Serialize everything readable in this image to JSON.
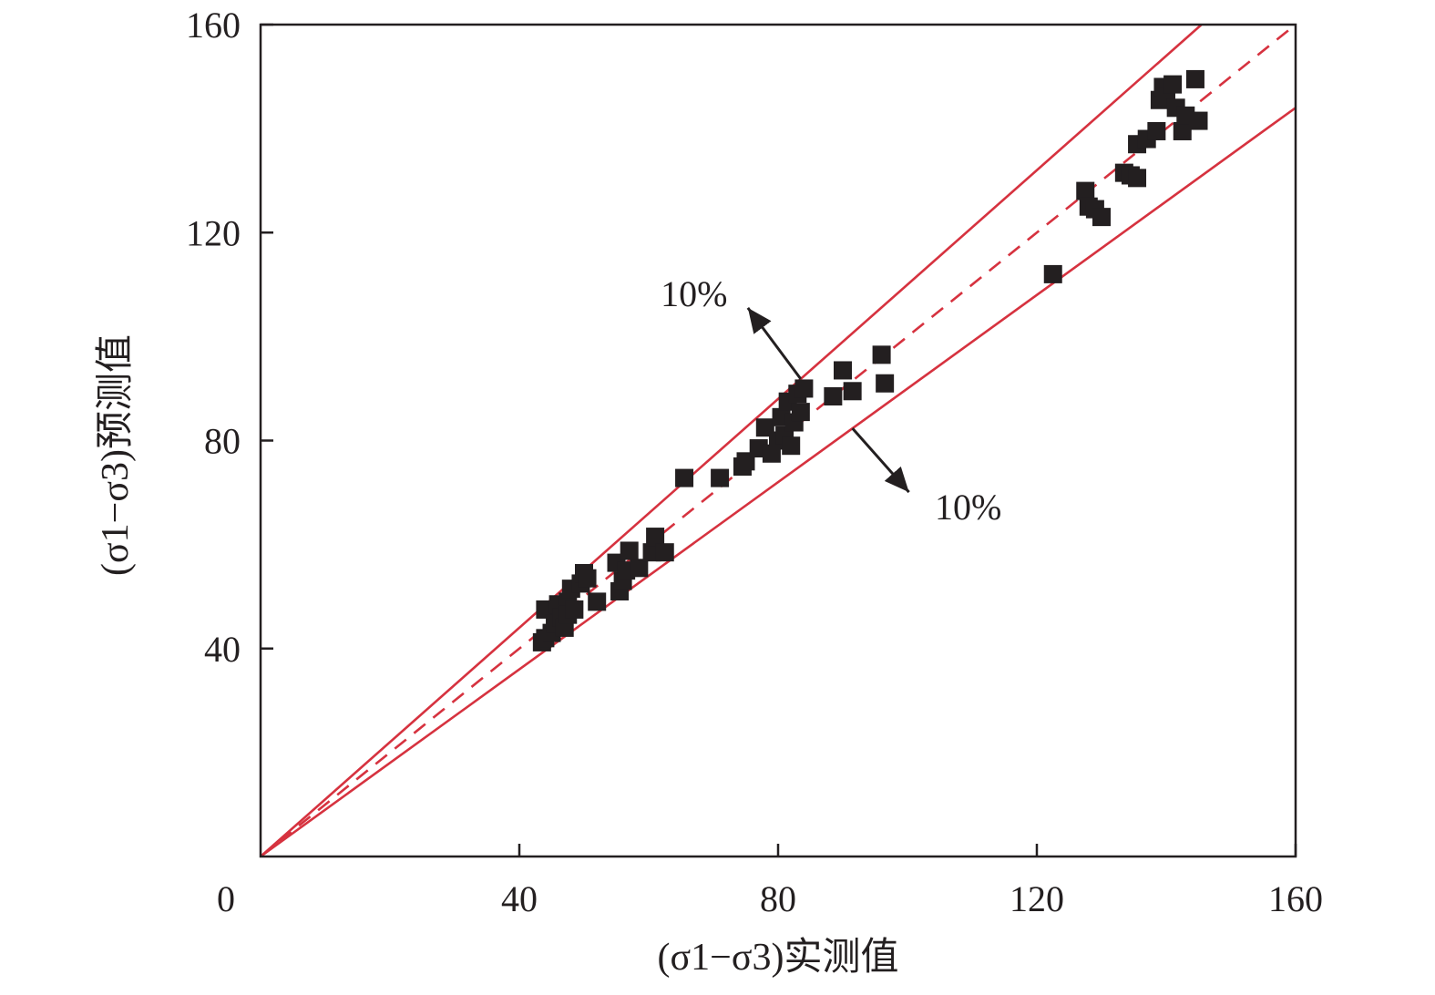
{
  "chart_data": {
    "type": "scatter",
    "xlabel": "(σ1−σ3)实测值",
    "ylabel": "(σ1−σ3)预测值",
    "xlim": [
      0,
      160
    ],
    "ylim": [
      0,
      160
    ],
    "x_ticks": [
      40,
      80,
      120,
      160
    ],
    "y_ticks": [
      40,
      80,
      120,
      160
    ],
    "origin_label": "0",
    "grid": false,
    "legend": "none",
    "marker": "square",
    "marker_color": "#231f20",
    "line_color": "#d6323f",
    "reference_lines": [
      {
        "kind": "identity",
        "slope": 1.0,
        "style": "dashed"
      },
      {
        "kind": "upper-bound",
        "slope": 1.1,
        "style": "solid"
      },
      {
        "kind": "lower-bound",
        "slope": 0.9,
        "style": "solid"
      }
    ],
    "annotations": [
      {
        "text": "10%",
        "target": "upper-bound"
      },
      {
        "text": "10%",
        "target": "lower-bound"
      }
    ],
    "points": [
      {
        "x": 43.5,
        "y": 41.2
      },
      {
        "x": 44.0,
        "y": 42.0
      },
      {
        "x": 44.0,
        "y": 47.5
      },
      {
        "x": 45.0,
        "y": 43.0
      },
      {
        "x": 45.5,
        "y": 44.8
      },
      {
        "x": 46.0,
        "y": 48.5
      },
      {
        "x": 46.5,
        "y": 46.0
      },
      {
        "x": 47.0,
        "y": 44.0
      },
      {
        "x": 47.5,
        "y": 49.0
      },
      {
        "x": 47.5,
        "y": 46.5
      },
      {
        "x": 48.0,
        "y": 51.5
      },
      {
        "x": 48.5,
        "y": 47.5
      },
      {
        "x": 49.5,
        "y": 52.5
      },
      {
        "x": 50.0,
        "y": 54.5
      },
      {
        "x": 50.5,
        "y": 53.5
      },
      {
        "x": 52.0,
        "y": 49.0
      },
      {
        "x": 55.0,
        "y": 56.5
      },
      {
        "x": 55.5,
        "y": 51.0
      },
      {
        "x": 56.0,
        "y": 53.0
      },
      {
        "x": 56.5,
        "y": 55.0
      },
      {
        "x": 57.0,
        "y": 58.8
      },
      {
        "x": 58.5,
        "y": 55.5
      },
      {
        "x": 60.5,
        "y": 58.5
      },
      {
        "x": 61.0,
        "y": 61.5
      },
      {
        "x": 62.5,
        "y": 58.5
      },
      {
        "x": 65.5,
        "y": 72.8
      },
      {
        "x": 71.0,
        "y": 72.8
      },
      {
        "x": 74.5,
        "y": 75.0
      },
      {
        "x": 75.0,
        "y": 76.0
      },
      {
        "x": 77.0,
        "y": 78.5
      },
      {
        "x": 78.0,
        "y": 82.5
      },
      {
        "x": 79.0,
        "y": 77.5
      },
      {
        "x": 80.0,
        "y": 80.0
      },
      {
        "x": 80.5,
        "y": 84.5
      },
      {
        "x": 81.0,
        "y": 81.0
      },
      {
        "x": 81.5,
        "y": 87.5
      },
      {
        "x": 82.0,
        "y": 79.0
      },
      {
        "x": 82.5,
        "y": 83.5
      },
      {
        "x": 83.0,
        "y": 89.0
      },
      {
        "x": 83.5,
        "y": 85.5
      },
      {
        "x": 84.0,
        "y": 90.0
      },
      {
        "x": 88.5,
        "y": 88.5
      },
      {
        "x": 90.0,
        "y": 93.5
      },
      {
        "x": 91.5,
        "y": 89.5
      },
      {
        "x": 96.0,
        "y": 96.5
      },
      {
        "x": 96.5,
        "y": 91.0
      },
      {
        "x": 122.5,
        "y": 112.0
      },
      {
        "x": 127.5,
        "y": 128.0
      },
      {
        "x": 128.0,
        "y": 125.0
      },
      {
        "x": 129.0,
        "y": 124.5
      },
      {
        "x": 130.0,
        "y": 123.0
      },
      {
        "x": 133.5,
        "y": 131.5
      },
      {
        "x": 134.5,
        "y": 131.0
      },
      {
        "x": 135.5,
        "y": 130.5
      },
      {
        "x": 135.5,
        "y": 137.0
      },
      {
        "x": 137.0,
        "y": 138.0
      },
      {
        "x": 138.5,
        "y": 139.5
      },
      {
        "x": 139.0,
        "y": 145.5
      },
      {
        "x": 139.5,
        "y": 148.0
      },
      {
        "x": 140.0,
        "y": 146.0
      },
      {
        "x": 141.0,
        "y": 148.5
      },
      {
        "x": 141.5,
        "y": 144.0
      },
      {
        "x": 142.5,
        "y": 139.5
      },
      {
        "x": 143.0,
        "y": 142.5
      },
      {
        "x": 144.5,
        "y": 149.5
      },
      {
        "x": 145.0,
        "y": 141.5
      }
    ]
  }
}
